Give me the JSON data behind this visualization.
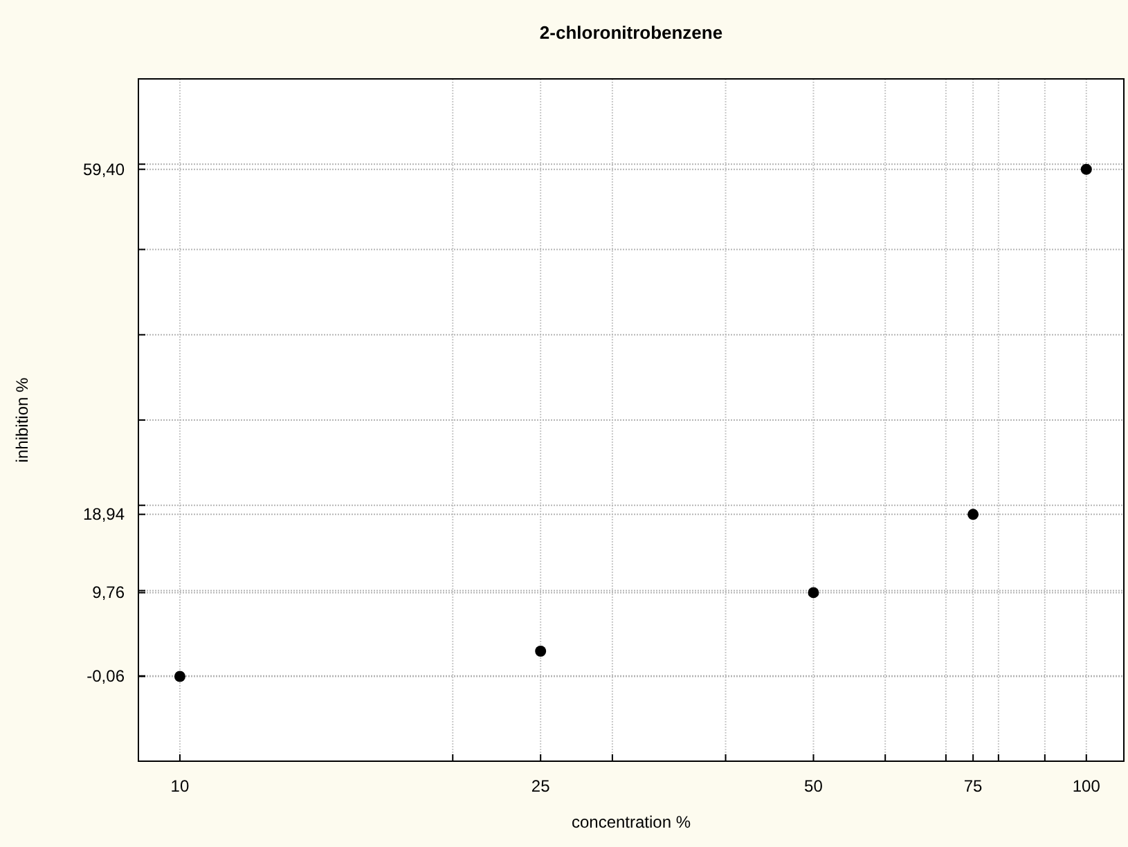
{
  "chart_data": {
    "type": "scatter",
    "title": "2-chloronitrobenzene",
    "xlabel": "concentration %",
    "ylabel": "inhibition %",
    "x": [
      10,
      25,
      50,
      75,
      100
    ],
    "series": [
      {
        "color": "#000000",
        "values": [
          -0.06,
          2.9,
          9.76,
          18.94,
          59.4
        ]
      }
    ],
    "log": "x",
    "xlim": [
      9,
      110
    ],
    "ylim": [
      -10,
      70
    ],
    "xticks": [
      10,
      {
        "value": 20,
        "label": null
      },
      25,
      {
        "value": 30,
        "label": null
      },
      {
        "value": 40,
        "label": null
      },
      50,
      {
        "value": 60,
        "label": null
      },
      {
        "value": 70,
        "label": null
      },
      75,
      {
        "value": 80,
        "label": null
      },
      {
        "value": 90,
        "label": null
      },
      100
    ],
    "yticks": [
      {
        "value": -0.06,
        "label": "-0,06"
      },
      {
        "value": 0,
        "label": null
      },
      {
        "value": 9.76,
        "label": "9,76"
      },
      {
        "value": 10,
        "label": null
      },
      {
        "value": 18.94,
        "label": "18,94"
      },
      {
        "value": 20,
        "label": null
      },
      {
        "value": 30,
        "label": null
      },
      {
        "value": 40,
        "label": null
      },
      {
        "value": 50,
        "label": null
      },
      {
        "value": 59.4,
        "label": "59,40"
      },
      {
        "value": 60,
        "label": null
      }
    ],
    "grid": true,
    "marker": "circle"
  }
}
